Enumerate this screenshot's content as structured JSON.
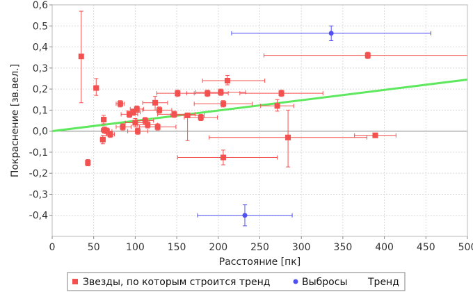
{
  "chart_data": {
    "type": "scatter",
    "title": "",
    "xlabel": "Расстояние [пк]",
    "ylabel": "Покраснение [зв.вел.]",
    "xlim": [
      0,
      500
    ],
    "ylim": [
      -0.5,
      0.6
    ],
    "x_ticks": [
      "0",
      "50",
      "100",
      "150",
      "200",
      "250",
      "300",
      "350",
      "400",
      "450",
      "500"
    ],
    "y_ticks": [
      "-0,4",
      "-0,3",
      "-0,2",
      "-0,1",
      "0,0",
      "0,1",
      "0,2",
      "0,3",
      "0,4",
      "0.5",
      "0,6"
    ],
    "grid": true,
    "legend_position": "bottom",
    "colors": {
      "stars": "#f35050",
      "outliers": "#5050f0",
      "trend": "#5ee85e",
      "zero_line": "#808080"
    },
    "series": [
      {
        "name": "Звезды, по которым строится тренд",
        "marker": "square",
        "points": [
          {
            "x": 35,
            "y": 0.355,
            "xerr": [
              0,
              0
            ],
            "yerr": [
              0.22,
              0.215
            ]
          },
          {
            "x": 53,
            "y": 0.205,
            "xerr": [
              3,
              3
            ],
            "yerr": [
              0.035,
              0.045
            ]
          },
          {
            "x": 43,
            "y": -0.15,
            "xerr": [
              2,
              2
            ],
            "yerr": [
              0.015,
              0.015
            ]
          },
          {
            "x": 62,
            "y": 0.055,
            "xerr": [
              3,
              3
            ],
            "yerr": [
              0.02,
              0.02
            ]
          },
          {
            "x": 61,
            "y": -0.04,
            "xerr": [
              3,
              3
            ],
            "yerr": [
              0.02,
              0.02
            ]
          },
          {
            "x": 63,
            "y": 0.005,
            "xerr": [
              4,
              4
            ],
            "yerr": [
              0.015,
              0.015
            ]
          },
          {
            "x": 66,
            "y": 0.0,
            "xerr": [
              4,
              6
            ],
            "yerr": [
              0.02,
              0.015
            ]
          },
          {
            "x": 70,
            "y": -0.015,
            "xerr": [
              5,
              5
            ],
            "yerr": [
              0.015,
              0.015
            ]
          },
          {
            "x": 82,
            "y": 0.13,
            "xerr": [
              5,
              5
            ],
            "yerr": [
              0.015,
              0.015
            ]
          },
          {
            "x": 85,
            "y": 0.02,
            "xerr": [
              8,
              10
            ],
            "yerr": [
              0.015,
              0.015
            ]
          },
          {
            "x": 93,
            "y": 0.08,
            "xerr": [
              10,
              10
            ],
            "yerr": [
              0.015,
              0.015
            ]
          },
          {
            "x": 98,
            "y": 0.09,
            "xerr": [
              8,
              8
            ],
            "yerr": [
              0.015,
              0.015
            ]
          },
          {
            "x": 102,
            "y": 0.105,
            "xerr": [
              8,
              8
            ],
            "yerr": [
              0.015,
              0.015
            ]
          },
          {
            "x": 100,
            "y": 0.04,
            "xerr": [
              12,
              15
            ],
            "yerr": [
              0.02,
              0.02
            ]
          },
          {
            "x": 103,
            "y": 0.0,
            "xerr": [
              12,
              12
            ],
            "yerr": [
              0.015,
              0.015
            ]
          },
          {
            "x": 112,
            "y": 0.05,
            "xerr": [
              10,
              10
            ],
            "yerr": [
              0.015,
              0.015
            ]
          },
          {
            "x": 115,
            "y": 0.03,
            "xerr": [
              12,
              12
            ],
            "yerr": [
              0.015,
              0.015
            ]
          },
          {
            "x": 124,
            "y": 0.135,
            "xerr": [
              15,
              15
            ],
            "yerr": [
              0.035,
              0.03
            ]
          },
          {
            "x": 129,
            "y": 0.1,
            "xerr": [
              20,
              15
            ],
            "yerr": [
              0.015,
              0.015
            ]
          },
          {
            "x": 127,
            "y": 0.02,
            "xerr": [
              22,
              22
            ],
            "yerr": [
              0.015,
              0.015
            ]
          },
          {
            "x": 147,
            "y": 0.08,
            "xerr": [
              20,
              25
            ],
            "yerr": [
              0.015,
              0.015
            ]
          },
          {
            "x": 151,
            "y": 0.18,
            "xerr": [
              25,
              20
            ],
            "yerr": [
              0.015,
              0.015
            ]
          },
          {
            "x": 163,
            "y": 0.075,
            "xerr": [
              20,
              20
            ],
            "yerr": [
              0.12,
              0.01
            ]
          },
          {
            "x": 179,
            "y": 0.065,
            "xerr": [
              20,
              20
            ],
            "yerr": [
              0.015,
              0.015
            ]
          },
          {
            "x": 187,
            "y": 0.18,
            "xerr": [
              25,
              25
            ],
            "yerr": [
              0.015,
              0.015
            ]
          },
          {
            "x": 203,
            "y": 0.185,
            "xerr": [
              30,
              30
            ],
            "yerr": [
              0.015,
              0.015
            ]
          },
          {
            "x": 206,
            "y": 0.13,
            "xerr": [
              35,
              35
            ],
            "yerr": [
              0.015,
              0.015
            ]
          },
          {
            "x": 211,
            "y": 0.24,
            "xerr": [
              30,
              45
            ],
            "yerr": [
              0.02,
              0.025
            ]
          },
          {
            "x": 206,
            "y": -0.125,
            "xerr": [
              55,
              65
            ],
            "yerr": [
              0.035,
              0.035
            ]
          },
          {
            "x": 271,
            "y": 0.12,
            "xerr": [
              20,
              20
            ],
            "yerr": [
              0.025,
              0.03
            ]
          },
          {
            "x": 276,
            "y": 0.18,
            "xerr": [
              50,
              50
            ],
            "yerr": [
              0.015,
              0.015
            ]
          },
          {
            "x": 284,
            "y": -0.03,
            "xerr": [
              95,
              95
            ],
            "yerr": [
              0.14,
              0.13
            ]
          },
          {
            "x": 380,
            "y": 0.36,
            "xerr": [
              125,
              125
            ],
            "yerr": [
              0.015,
              0.015
            ]
          },
          {
            "x": 389,
            "y": -0.02,
            "xerr": [
              25,
              25
            ],
            "yerr": [
              0.01,
              0.01
            ]
          }
        ]
      },
      {
        "name": "Выбросы",
        "marker": "circle",
        "points": [
          {
            "x": 336,
            "y": 0.465,
            "xerr": [
              120,
              120
            ],
            "yerr": [
              0.035,
              0.035
            ]
          },
          {
            "x": 232,
            "y": -0.4,
            "xerr": [
              57,
              57
            ],
            "yerr": [
              0.05,
              0.05
            ]
          }
        ]
      },
      {
        "name": "Тренд",
        "type": "line",
        "x": [
          0,
          500
        ],
        "y": [
          0.0,
          0.245
        ]
      }
    ]
  }
}
